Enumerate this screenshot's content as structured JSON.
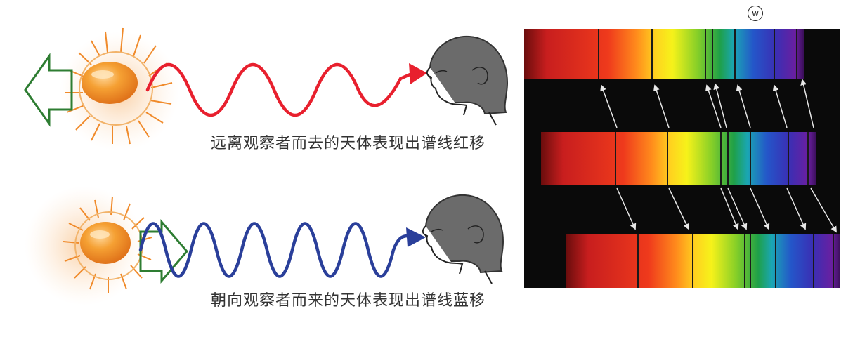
{
  "captions": {
    "receding": "远离观察者而去的天体表现出谱线红移",
    "approaching": "朝向观察者而来的天体表现出谱线蓝移"
  },
  "watermark": "w",
  "colors": {
    "redshift_wave": "#e8202e",
    "blueshift_wave": "#2a3f9a",
    "arrow_outline": "#2e7d32",
    "head_hair": "#6b6b6b"
  },
  "icons": [
    "sun-icon",
    "motion-arrow-icon",
    "observer-head-icon"
  ]
}
